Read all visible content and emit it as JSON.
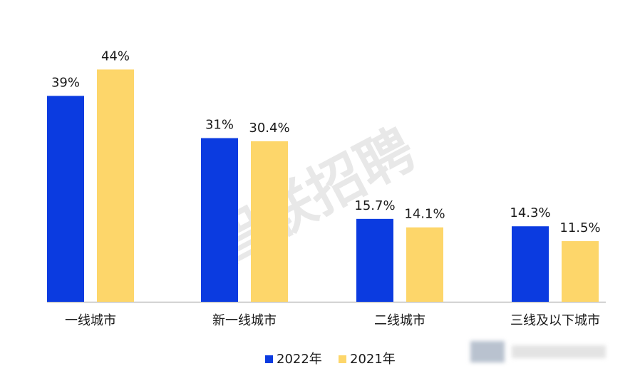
{
  "chart_data": {
    "type": "bar",
    "title": "",
    "xlabel": "",
    "ylabel": "",
    "ylim": [
      0,
      50
    ],
    "grid": false,
    "legend_position": "bottom-center",
    "categories": [
      "一线城市",
      "新一线城市",
      "二线城市",
      "三线及以下城市"
    ],
    "series": [
      {
        "name": "2022年",
        "color": "#0B3BE0",
        "values": [
          39,
          31,
          15.7,
          14.3
        ],
        "labels": [
          "39%",
          "31%",
          "15.7%",
          "14.3%"
        ]
      },
      {
        "name": "2021年",
        "color": "#FDD66A",
        "values": [
          44,
          30.4,
          14.1,
          11.5
        ],
        "labels": [
          "44%",
          "30.4%",
          "14.1%",
          "11.5%"
        ]
      }
    ]
  },
  "watermark": "智联招聘",
  "axis_color": "#bfbfbf"
}
